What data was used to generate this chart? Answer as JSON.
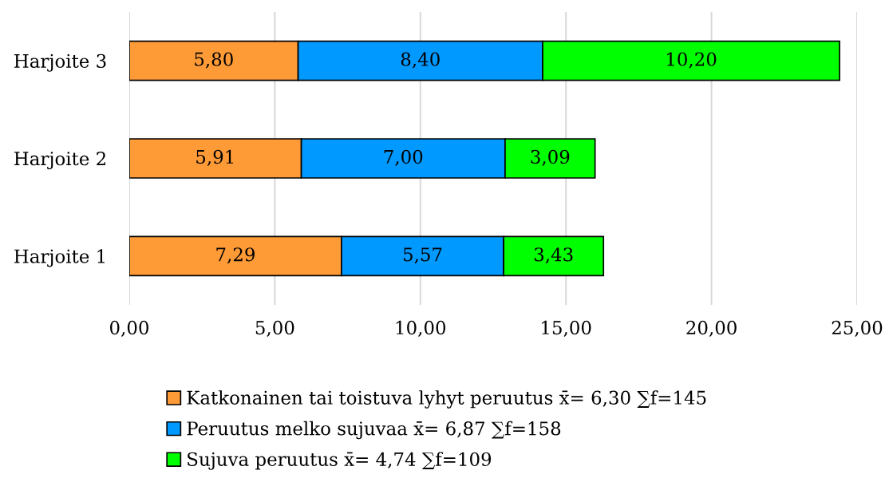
{
  "chart_data": {
    "type": "bar",
    "orientation": "horizontal",
    "stacked": true,
    "categories": [
      "Harjoite 3",
      "Harjoite 2",
      "Harjoite 1"
    ],
    "series": [
      {
        "name": "Katkonainen tai toistuva lyhyt peruutus x̄= 6,30 ∑f=145",
        "color": "#ff9b37",
        "values": [
          5.8,
          5.91,
          7.29
        ],
        "value_labels": [
          "5,80",
          "5,91",
          "7,29"
        ]
      },
      {
        "name": "Peruutus melko sujuvaa x̄= 6,87 ∑f=158",
        "color": "#0099ff",
        "values": [
          8.4,
          7.0,
          5.57
        ],
        "value_labels": [
          "8,40",
          "7,00",
          "5,57"
        ]
      },
      {
        "name": "Sujuva peruutus x̄= 4,74 ∑f=109",
        "color": "#00ff00",
        "values": [
          10.2,
          3.09,
          3.43
        ],
        "value_labels": [
          "10,20",
          "3,09",
          "3,43"
        ]
      }
    ],
    "xlim": [
      0,
      25
    ],
    "xticks": [
      {
        "value": 0,
        "label": "0,00"
      },
      {
        "value": 5,
        "label": "5,00"
      },
      {
        "value": 10,
        "label": "10,00"
      },
      {
        "value": 15,
        "label": "15,00"
      },
      {
        "value": 20,
        "label": "20,00"
      },
      {
        "value": 25,
        "label": "25,00"
      }
    ],
    "grid": "x",
    "legend": "bottom"
  }
}
